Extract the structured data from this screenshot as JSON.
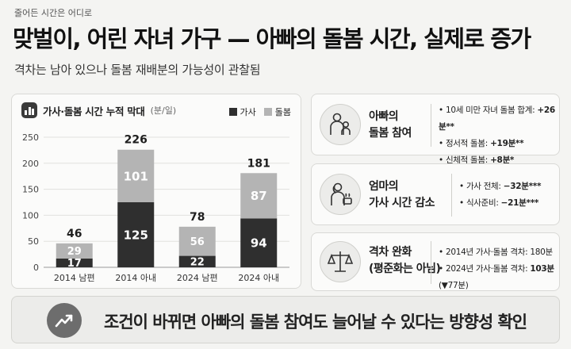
{
  "kicker": "줄어든 시간은 어디로",
  "title": "맞벌이, 어린 자녀 가구 — 아빠의 돌봄 시간, 실제로 증가",
  "subtitle": "격차는 남아 있으나 돌봄 재배분의 가능성이 관찰됨",
  "chart": {
    "title": "가사·돌봄 시간 누적 막대",
    "unit": "(분/일)",
    "legend": [
      "가사",
      "돌봄"
    ]
  },
  "chart_data": {
    "type": "bar",
    "stacked": true,
    "categories": [
      "2014 남편",
      "2014 아내",
      "2024 남편",
      "2024 아내"
    ],
    "series": [
      {
        "name": "가사",
        "values": [
          17,
          125,
          22,
          94
        ],
        "color": "#2f2f2f"
      },
      {
        "name": "돌봄",
        "values": [
          29,
          101,
          56,
          87
        ],
        "color": "#b4b4b4"
      }
    ],
    "totals": [
      46,
      226,
      78,
      181
    ],
    "ylim": [
      0,
      250
    ],
    "yticks": [
      0,
      50,
      100,
      150,
      200,
      250
    ],
    "grid": true
  },
  "cards": [
    {
      "label_lines": [
        "아빠의",
        "돌봄 참여"
      ],
      "icon": "father-child-icon",
      "items": [
        {
          "text": "10세 미만 자녀 돌봄 합계: ",
          "value": "+26분**"
        },
        {
          "text": "정서적 돌봄: ",
          "value": "+19분**"
        },
        {
          "text": "신체적 돌봄: ",
          "value": "+8분*"
        }
      ]
    },
    {
      "label_lines": [
        "엄마의",
        "가사 시간 감소"
      ],
      "icon": "mother-cooking-icon",
      "items": [
        {
          "text": "가사 전체: ",
          "value": "−32분***"
        },
        {
          "text": "식사준비: ",
          "value": "−21분***"
        }
      ]
    },
    {
      "label_lines": [
        "격차 완화"
      ],
      "note": "(평준화는 아님)",
      "icon": "balance-scale-icon",
      "items": [
        {
          "text": "2014년 가사·돌봄 격차: ",
          "value": "180분"
        },
        {
          "text": "2024년 가사·돌봄 격차: ",
          "value": "103분",
          "suffix": " (▼77분)"
        }
      ]
    }
  ],
  "banner": {
    "icon": "trend-up-icon",
    "text": "조건이 바뀌면 아빠의 돌봄 참여도 늘어날 수 있다는 방향성 확인"
  },
  "colors": {
    "housework": "#2f2f2f",
    "care": "#b4b4b4",
    "background": "#f4f4f2"
  }
}
